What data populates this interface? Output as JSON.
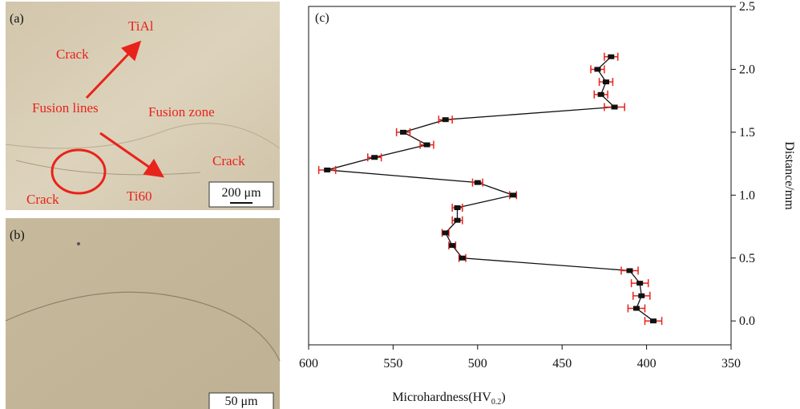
{
  "panels": {
    "a": {
      "label": "(a)",
      "annotations": [
        "TiAl",
        "Crack",
        "Fusion lines",
        "Fusion zone",
        "Crack",
        "Crack",
        "Ti60"
      ],
      "scale_bar": "200 μm"
    },
    "b": {
      "label": "(b)",
      "scale_bar": "50 μm"
    }
  },
  "chart_data": {
    "type": "line",
    "title": "(c)",
    "xlabel": "Microhardness(HV",
    "xlabel_sub": "0.2",
    "xlabel_end": ")",
    "ylabel": "Distance/mm",
    "x": [
      396,
      406,
      403,
      404,
      410,
      509,
      515,
      519,
      512,
      512,
      479,
      500,
      589,
      561,
      530,
      544,
      519,
      419,
      427,
      424,
      429,
      421
    ],
    "x_errors": [
      5,
      5,
      5,
      5,
      5,
      2,
      2,
      2,
      3,
      3,
      2,
      3,
      5,
      4,
      4,
      4,
      4,
      6,
      4,
      4,
      4,
      4
    ],
    "values": [
      0.0,
      0.1,
      0.2,
      0.3,
      0.4,
      0.5,
      0.6,
      0.7,
      0.8,
      0.9,
      1.0,
      1.1,
      1.2,
      1.3,
      1.4,
      1.5,
      1.6,
      1.7,
      1.8,
      1.9,
      2.0,
      2.1
    ],
    "line_color": "#111111",
    "marker_color": "#111111",
    "error_color": "#e8231c",
    "xlim": [
      600,
      350
    ],
    "xticks": [
      600,
      550,
      500,
      450,
      400,
      350
    ],
    "ylim": [
      -0.19,
      2.5
    ],
    "yticks": [
      {
        "value": 0,
        "label": "0.0"
      },
      {
        "value": 0.5,
        "label": "0.5"
      },
      {
        "value": 1,
        "label": "1.0"
      },
      {
        "value": 1.5,
        "label": "1.5"
      },
      {
        "value": 2,
        "label": "2.0"
      },
      {
        "value": 2.5,
        "label": "2.5"
      }
    ],
    "y_axis_side": "right"
  }
}
